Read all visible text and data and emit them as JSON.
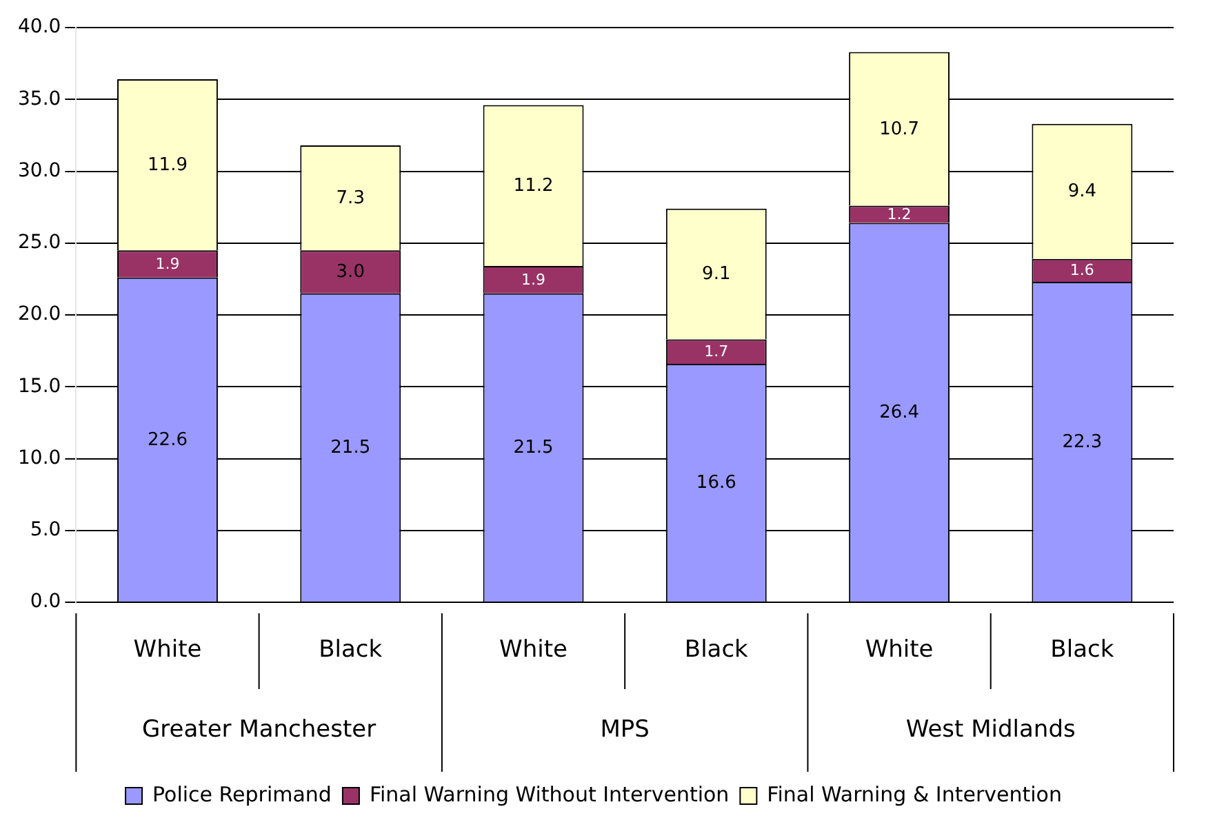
{
  "chart_data": {
    "type": "bar",
    "stacked": true,
    "categories": [
      "White",
      "Black",
      "White",
      "Black",
      "White",
      "Black"
    ],
    "series": [
      {
        "name": "Police Reprimand",
        "color": "#9999ff",
        "values": [
          22.6,
          21.5,
          21.5,
          16.6,
          26.4,
          22.3
        ],
        "value_labels": [
          "22.6",
          "21.5",
          "21.5",
          "16.6",
          "26.4",
          "22.3"
        ]
      },
      {
        "name": "Final Warning Without Intervention",
        "color": "#993366",
        "values": [
          1.9,
          3.0,
          1.9,
          1.7,
          1.2,
          1.6
        ],
        "value_labels": [
          "1.9",
          "3.0",
          "1.9",
          "1.7",
          "1.2",
          "1.6"
        ]
      },
      {
        "name": "Final Warning & Intervention",
        "color": "#ffffcc",
        "values": [
          11.9,
          7.3,
          11.2,
          9.1,
          10.7,
          9.4
        ],
        "value_labels": [
          "11.9",
          "7.3",
          "11.2",
          "9.1",
          "10.7",
          "9.4"
        ]
      }
    ],
    "annotations": [
      "Greater Manchester",
      "MPS",
      "West Midlands"
    ],
    "ylim": [
      0,
      40
    ],
    "yticks": [
      {
        "value": 0,
        "label": "0.0"
      },
      {
        "value": 5,
        "label": "5.0"
      },
      {
        "value": 10,
        "label": "10.0"
      },
      {
        "value": 15,
        "label": "15.0"
      },
      {
        "value": 20,
        "label": "20.0"
      },
      {
        "value": 25,
        "label": "25.0"
      },
      {
        "value": 30,
        "label": "30.0"
      },
      {
        "value": 35,
        "label": "35.0"
      },
      {
        "value": 40,
        "label": "40.0"
      }
    ],
    "grid": "y",
    "legend": "bottom"
  }
}
